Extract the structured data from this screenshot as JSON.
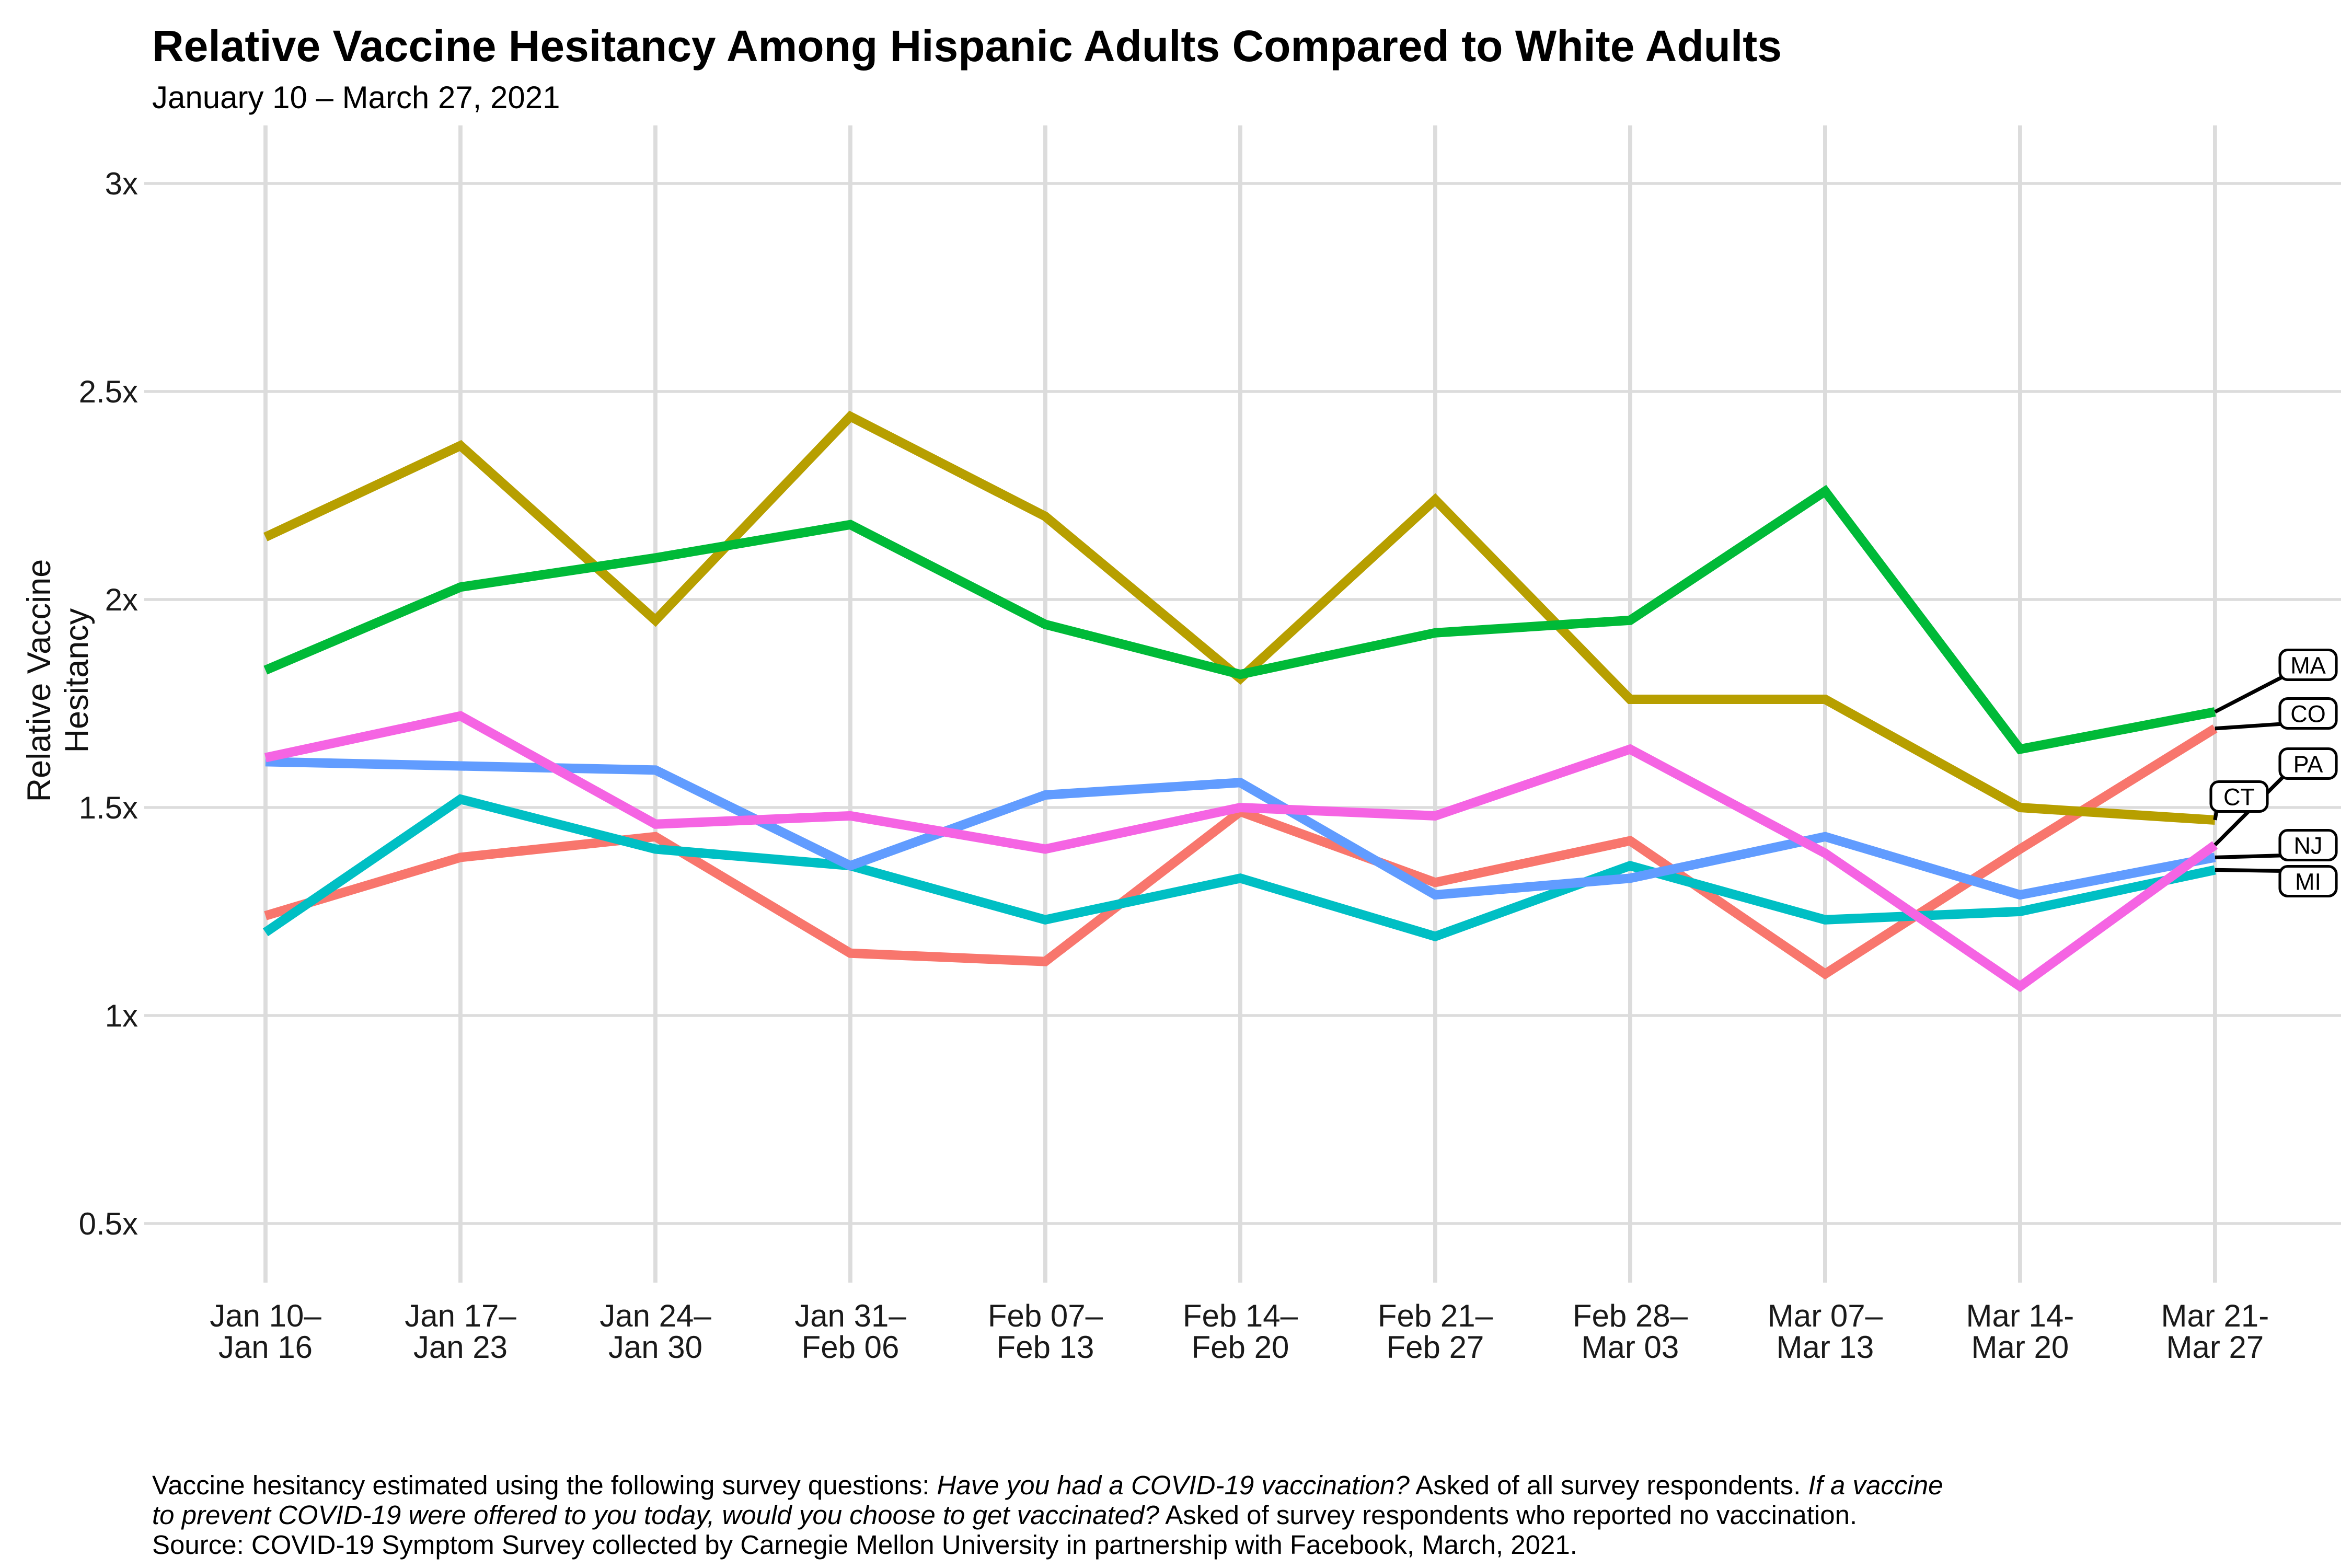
{
  "title": "Relative Vaccine Hesitancy Among Hispanic Adults Compared to White Adults",
  "subtitle": "January 10 – March 27, 2021",
  "y_axis_title": "Relative Vaccine Hesitancy",
  "chart_data": {
    "type": "line",
    "title": "Relative Vaccine Hesitancy Among Hispanic Adults Compared to White Adults",
    "subtitle": "January 10 – March 27, 2021",
    "xlabel": "",
    "ylabel": "Relative Vaccine Hesitancy",
    "ylim": [
      0.5,
      3.0
    ],
    "grid": true,
    "legend_position": "right-edge boxed labels",
    "yticks": [
      {
        "v": 3.0,
        "label": "3x"
      },
      {
        "v": 2.5,
        "label": "2.5x"
      },
      {
        "v": 2.0,
        "label": "2x"
      },
      {
        "v": 1.5,
        "label": "1.5x"
      },
      {
        "v": 1.0,
        "label": "1x"
      },
      {
        "v": 0.5,
        "label": "0.5x"
      }
    ],
    "categories": [
      [
        "Jan 10–",
        "Jan 16"
      ],
      [
        "Jan 17–",
        "Jan 23"
      ],
      [
        "Jan 24–",
        "Jan 30"
      ],
      [
        "Jan 31–",
        "Feb 06"
      ],
      [
        "Feb 07–",
        "Feb 13"
      ],
      [
        "Feb 14–",
        "Feb 20"
      ],
      [
        "Feb 21–",
        "Feb 27"
      ],
      [
        "Feb 28–",
        "Mar 03"
      ],
      [
        "Mar 07–",
        "Mar 13"
      ],
      [
        "Mar 14-",
        "Mar 20"
      ],
      [
        "Mar 21-",
        "Mar 27"
      ]
    ],
    "series": [
      {
        "name": "CO",
        "color": "#F8766D",
        "values": [
          1.24,
          1.38,
          1.43,
          1.15,
          1.13,
          1.49,
          1.32,
          1.42,
          1.1,
          1.4,
          1.69
        ]
      },
      {
        "name": "CT",
        "color": "#B79F00",
        "values": [
          2.15,
          2.37,
          1.95,
          2.44,
          2.2,
          1.81,
          2.24,
          1.76,
          1.76,
          1.5,
          1.47
        ]
      },
      {
        "name": "MA",
        "color": "#00BA38",
        "values": [
          1.83,
          2.03,
          2.1,
          2.18,
          1.94,
          1.82,
          1.92,
          1.95,
          2.26,
          1.64,
          1.73
        ]
      },
      {
        "name": "MI",
        "color": "#00BFC4",
        "values": [
          1.2,
          1.52,
          1.4,
          1.36,
          1.23,
          1.33,
          1.19,
          1.36,
          1.23,
          1.25,
          1.35
        ]
      },
      {
        "name": "NJ",
        "color": "#619CFF",
        "values": [
          1.61,
          1.6,
          1.59,
          1.36,
          1.53,
          1.56,
          1.29,
          1.33,
          1.43,
          1.29,
          1.38
        ]
      },
      {
        "name": "PA",
        "color": "#F564E3",
        "values": [
          1.62,
          1.72,
          1.46,
          1.48,
          1.4,
          1.5,
          1.48,
          1.64,
          1.39,
          1.07,
          1.41
        ]
      }
    ],
    "labels": [
      {
        "series": "MA",
        "cx": 1472,
        "cy": 424
      },
      {
        "series": "CO",
        "cx": 1472,
        "cy": 455
      },
      {
        "series": "PA",
        "cx": 1472,
        "cy": 487
      },
      {
        "series": "CT",
        "cx": 1428,
        "cy": 508
      },
      {
        "series": "NJ",
        "cx": 1472,
        "cy": 539
      },
      {
        "series": "MI",
        "cx": 1472,
        "cy": 562
      }
    ],
    "colors": {
      "grid": "#DCDCDC",
      "label_box_border": "#000000",
      "label_box_fill": "#FFFFFF",
      "tick_text": "#1A1A1A"
    }
  },
  "footer": {
    "lines": [
      [
        {
          "text": "Vaccine hesitancy estimated using the following survey questions: ",
          "italic": false
        },
        {
          "text": "Have you had a COVID-19 vaccination?",
          "italic": true
        },
        {
          "text": " Asked of all survey respondents. ",
          "italic": false
        },
        {
          "text": "If a vaccine",
          "italic": true
        }
      ],
      [
        {
          "text": "to prevent COVID-19 were offered to you today, would you choose to get vaccinated?",
          "italic": true
        },
        {
          "text": " Asked of survey respondents who reported no vaccination.",
          "italic": false
        }
      ],
      [
        {
          "text": "Source: COVID-19 Symptom Survey collected by Carnegie Mellon University in partnership with Facebook, March, 2021.",
          "italic": false
        }
      ]
    ]
  }
}
